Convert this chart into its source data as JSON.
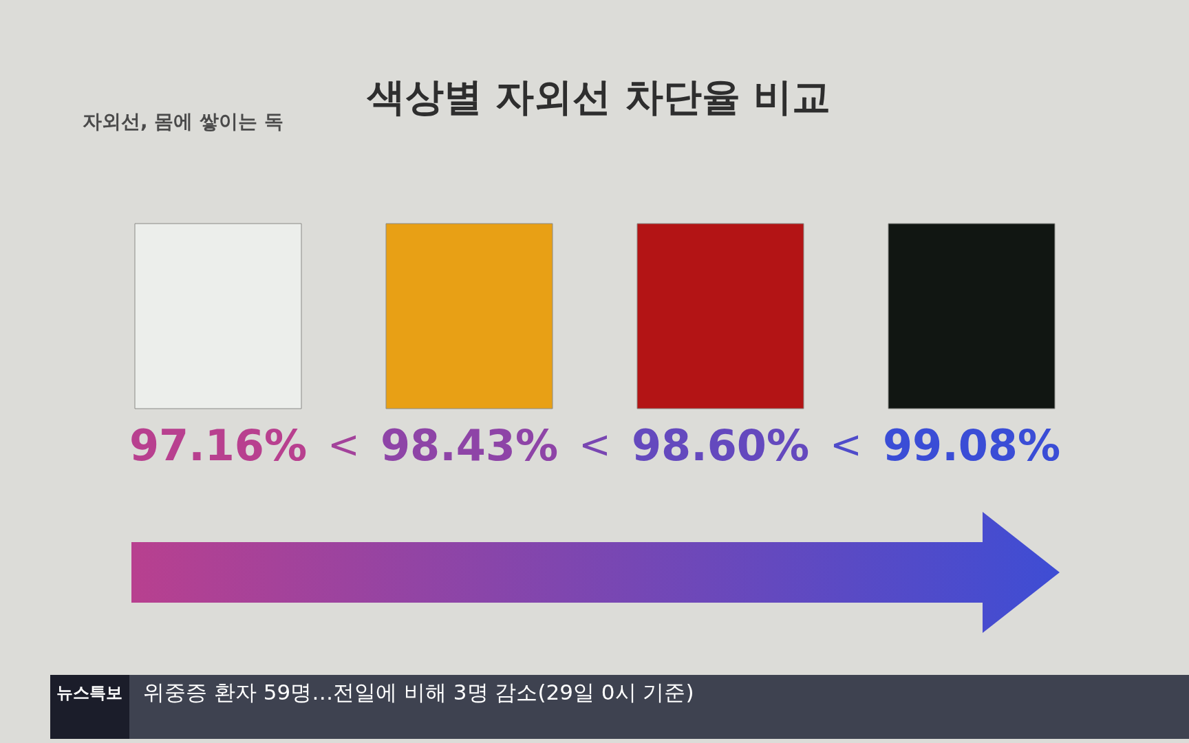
{
  "chart_data": {
    "type": "other",
    "title": "색상별 자외선 차단율 비교",
    "subtitle": "자외선, 몸에 쌓이는 독",
    "categories": [
      null,
      null,
      null,
      null
    ],
    "values": [
      97.16,
      98.43,
      98.6,
      99.08
    ],
    "colors": [
      "#eceeeb",
      "#e8a015",
      "#b31415",
      "#111612"
    ],
    "value_labels": [
      "97.16%",
      "98.43%",
      "98.60%",
      "99.08%"
    ],
    "annotations": [
      "<",
      "<",
      "<",
      "뉴스특보",
      "위중증 환자 59명…전일에 비해 3명 감소(29일 0시 기준)"
    ]
  }
}
